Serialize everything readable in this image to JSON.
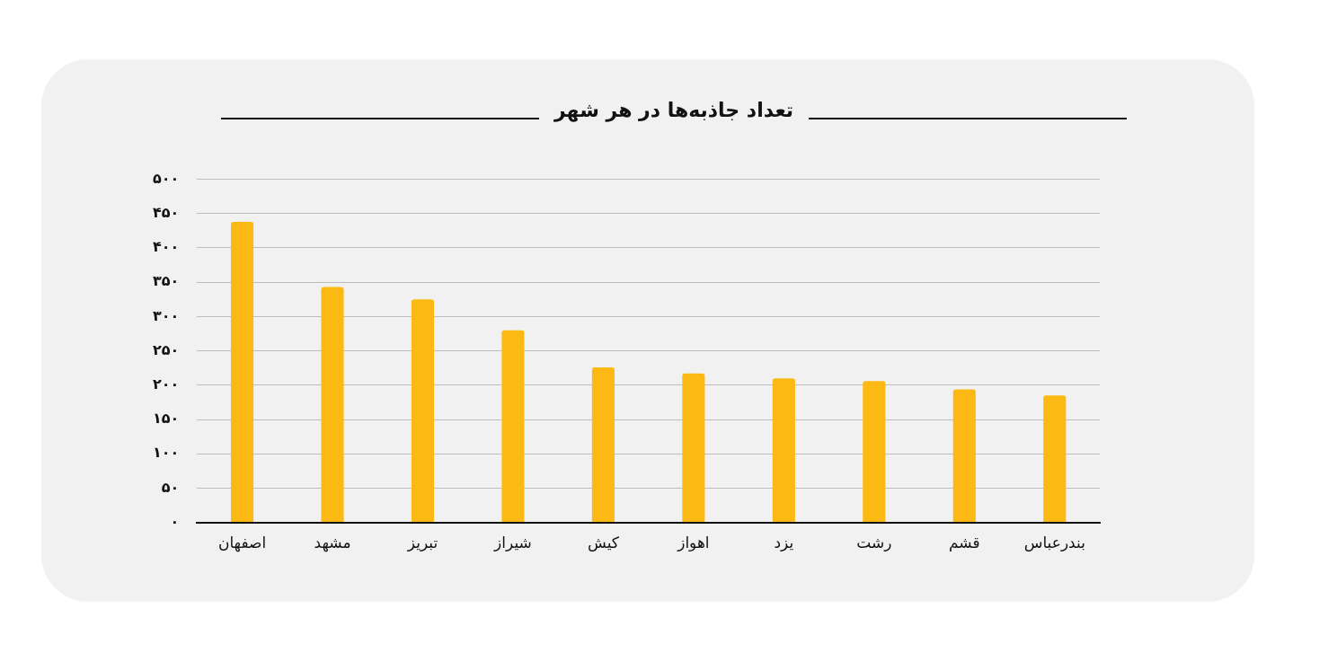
{
  "chart_data": {
    "type": "bar",
    "title": "تعداد جاذبه‌ها در هر شهر",
    "categories": [
      "اصفهان",
      "مشهد",
      "تبریز",
      "شیراز",
      "کیش",
      "اهواز",
      "یزد",
      "رشت",
      "قشم",
      "بندرعباس"
    ],
    "values": [
      438,
      343,
      325,
      280,
      226,
      217,
      210,
      206,
      194,
      185
    ],
    "color": "#fdb913",
    "ylim": [
      0,
      500
    ],
    "yticks": [
      {
        "value": 0,
        "label": "۰"
      },
      {
        "value": 50,
        "label": "۵۰"
      },
      {
        "value": 100,
        "label": "۱۰۰"
      },
      {
        "value": 150,
        "label": "۱۵۰"
      },
      {
        "value": 200,
        "label": "۲۰۰"
      },
      {
        "value": 250,
        "label": "۲۵۰"
      },
      {
        "value": 300,
        "label": "۳۰۰"
      },
      {
        "value": 350,
        "label": "۳۵۰"
      },
      {
        "value": 400,
        "label": "۴۰۰"
      },
      {
        "value": 450,
        "label": "۴۵۰"
      },
      {
        "value": 500,
        "label": "۵۰۰"
      }
    ],
    "grid": "y"
  }
}
